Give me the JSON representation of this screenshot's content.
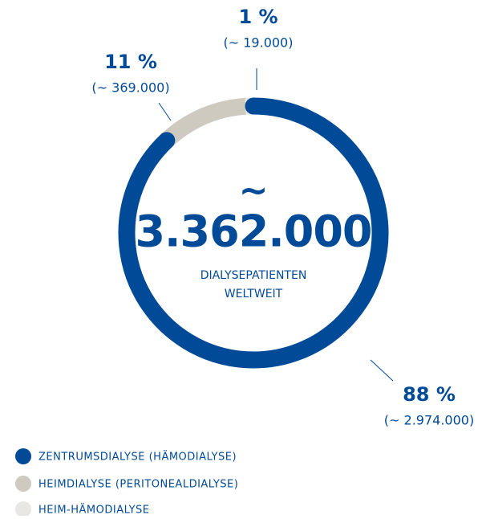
{
  "chart_data": {
    "type": "donut",
    "categories": [
      "ZENTRUMSDIALYSE (HÄMODIALYSE)",
      "HEIMDIALYSE (PERITONEALDIALYSE)",
      "HEIM-HÄMODIALYSE"
    ],
    "values": [
      88,
      11,
      1
    ],
    "value_labels": [
      "88 %",
      "11 %",
      "1 %"
    ],
    "count_labels": [
      "(~ 2.974.000)",
      "(~ 369.000)",
      "(~ 19.000)"
    ],
    "colors": [
      "#004a97",
      "#cfcac0",
      "#e9e7e4"
    ],
    "center_symbol": "~",
    "center_value": "3.362.000",
    "center_label": [
      "DIALYSEPATIENTEN",
      "WELTWEIT"
    ],
    "legend": "bottom-left"
  }
}
